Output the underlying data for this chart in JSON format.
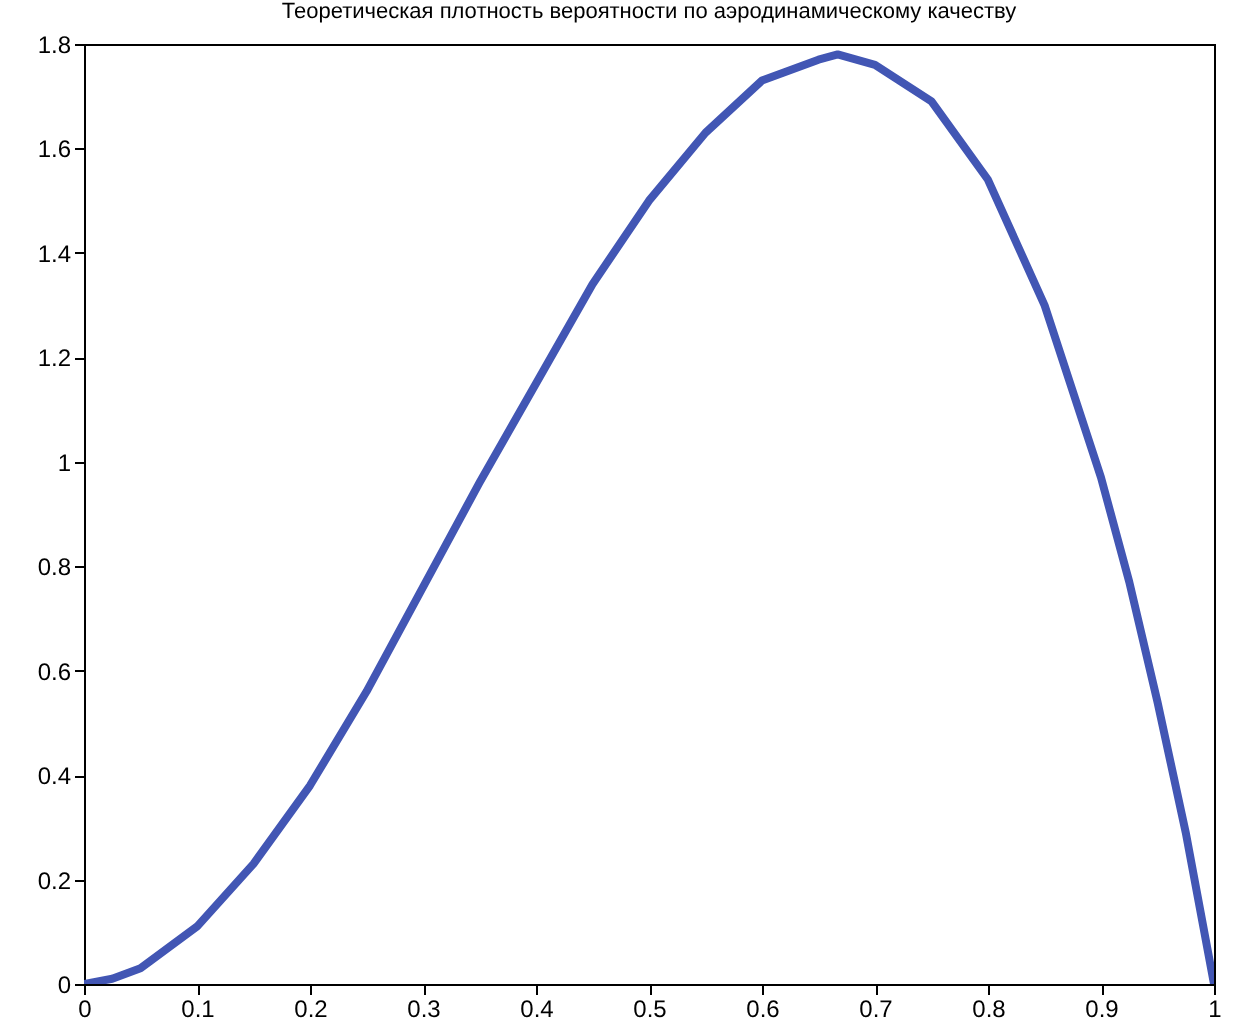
{
  "chart_data": {
    "type": "line",
    "title": "Теоретическая плотность вероятности по аэродинамическому качеству",
    "x": [
      0,
      0.025,
      0.05,
      0.1,
      0.15,
      0.2,
      0.25,
      0.3,
      0.35,
      0.4,
      0.45,
      0.5,
      0.55,
      0.6,
      0.65,
      0.667,
      0.7,
      0.75,
      0.8,
      0.85,
      0.9,
      0.925,
      0.95,
      0.975,
      1
    ],
    "series": [
      {
        "color": "#4256b4",
        "values": [
          0,
          0.01,
          0.03,
          0.11,
          0.23,
          0.38,
          0.56,
          0.76,
          0.96,
          1.15,
          1.34,
          1.5,
          1.63,
          1.73,
          1.77,
          1.78,
          1.76,
          1.69,
          1.54,
          1.3,
          0.97,
          0.77,
          0.54,
          0.29,
          0
        ]
      }
    ],
    "xlim": [
      0,
      1
    ],
    "xticks": [
      0,
      0.1,
      0.2,
      0.3,
      0.4,
      0.5,
      0.6,
      0.7,
      0.8,
      0.9,
      1
    ],
    "ylim": [
      0,
      1.8
    ],
    "yticks": [
      0,
      0.2,
      0.4,
      0.6,
      0.8,
      1,
      1.2,
      1.4,
      1.6,
      1.8
    ]
  }
}
